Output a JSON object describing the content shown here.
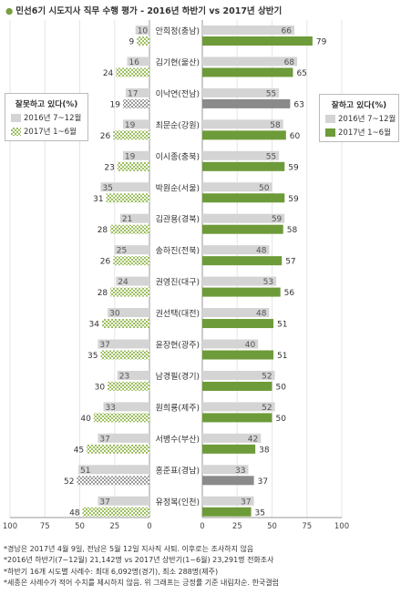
{
  "title": "민선6기 시도지사 직무 수행 평가 - 2016년 하반기 vs 2017년 상반기",
  "legend_left": {
    "title": "잘못하고 있다(%)",
    "items": [
      "2016년 7~12월",
      "2017년 1~6월"
    ]
  },
  "legend_right": {
    "title": "잘하고 있다(%)",
    "items": [
      "2016년 7~12월",
      "2017년 1~6월"
    ]
  },
  "footnotes": [
    "*경남은 2017년 4월 9일, 전남은 5월 12일 지사직 사퇴. 이후로는 조사하지 않음",
    "*2016년 하반기(7~12월) 21,142명 vs 2017년 상반기(1~6월) 23,291명 전화조사",
    "*하반기 16개 시도별 사례수: 최대 6,092명(경기), 최소 288명(제주)",
    "*세종은 사례수가 적어 수치를 제시하지 않음. 위 그래프는 긍정률 기준 내림차순. 한국갤럽"
  ],
  "colors": {
    "gray": "#d4d4d4",
    "green": "#6e9b39",
    "check_green": "#9dbf60",
    "dark_gray": "#8a8a8a",
    "check_gray": "#9a9a9a"
  },
  "chart_data": {
    "type": "bar",
    "orientation": "horizontal-diverging",
    "categories": [
      "안희정(충남)",
      "김기현(울산)",
      "이낙연(전남)",
      "최문순(강원)",
      "이시종(충북)",
      "박원순(서울)",
      "김관용(경북)",
      "송하진(전북)",
      "권영진(대구)",
      "권선택(대전)",
      "윤장현(광주)",
      "남경필(경기)",
      "원희룡(제주)",
      "서병수(부산)",
      "홍준표(경남)",
      "유정복(인천)"
    ],
    "series": [
      {
        "name": "잘못하고 있다 2016년 7~12월",
        "values": [
          10,
          16,
          17,
          19,
          19,
          35,
          21,
          25,
          24,
          30,
          37,
          23,
          33,
          37,
          51,
          37
        ]
      },
      {
        "name": "잘못하고 있다 2017년 1~6월",
        "values": [
          9,
          24,
          19,
          26,
          23,
          31,
          28,
          26,
          28,
          34,
          35,
          30,
          40,
          45,
          52,
          48
        ]
      },
      {
        "name": "잘하고 있다 2016년 7~12월",
        "values": [
          66,
          68,
          55,
          58,
          55,
          50,
          59,
          48,
          53,
          48,
          40,
          52,
          52,
          42,
          33,
          37
        ]
      },
      {
        "name": "잘하고 있다 2017년 1~6월",
        "values": [
          79,
          65,
          63,
          60,
          59,
          59,
          58,
          57,
          56,
          51,
          51,
          50,
          50,
          38,
          37,
          35
        ]
      }
    ],
    "left_axis_ticks": [
      "100",
      "75",
      "50",
      "25",
      "0"
    ],
    "right_axis_ticks": [
      "0",
      "25",
      "50",
      "75",
      "100"
    ],
    "xlim": [
      0,
      100
    ],
    "special_categories": [
      "이낙연(전남)",
      "홍준표(경남)"
    ]
  }
}
